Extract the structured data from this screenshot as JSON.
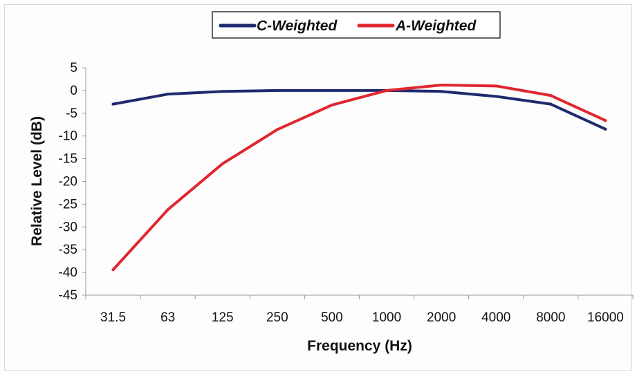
{
  "chart_data": {
    "type": "line",
    "title": "",
    "xlabel": "Frequency (Hz)",
    "ylabel": "Relative Level (dB)",
    "categories": [
      "31.5",
      "63",
      "125",
      "250",
      "500",
      "1000",
      "2000",
      "4000",
      "8000",
      "16000"
    ],
    "ylim": [
      -45,
      5
    ],
    "yticks": [
      5,
      0,
      -5,
      -10,
      -15,
      -20,
      -25,
      -30,
      -35,
      -40,
      -45
    ],
    "grid": false,
    "legend_position": "top",
    "series": [
      {
        "name": "C-Weighted",
        "color": "#1f2a6e",
        "values": [
          -3.0,
          -0.8,
          -0.2,
          0.0,
          0.0,
          0.0,
          -0.2,
          -1.3,
          -3.0,
          -8.5
        ]
      },
      {
        "name": "A-Weighted",
        "color": "#e0262f",
        "values": [
          -39.4,
          -26.2,
          -16.1,
          -8.6,
          -3.2,
          0.0,
          1.2,
          1.0,
          -1.1,
          -6.6
        ]
      }
    ]
  }
}
